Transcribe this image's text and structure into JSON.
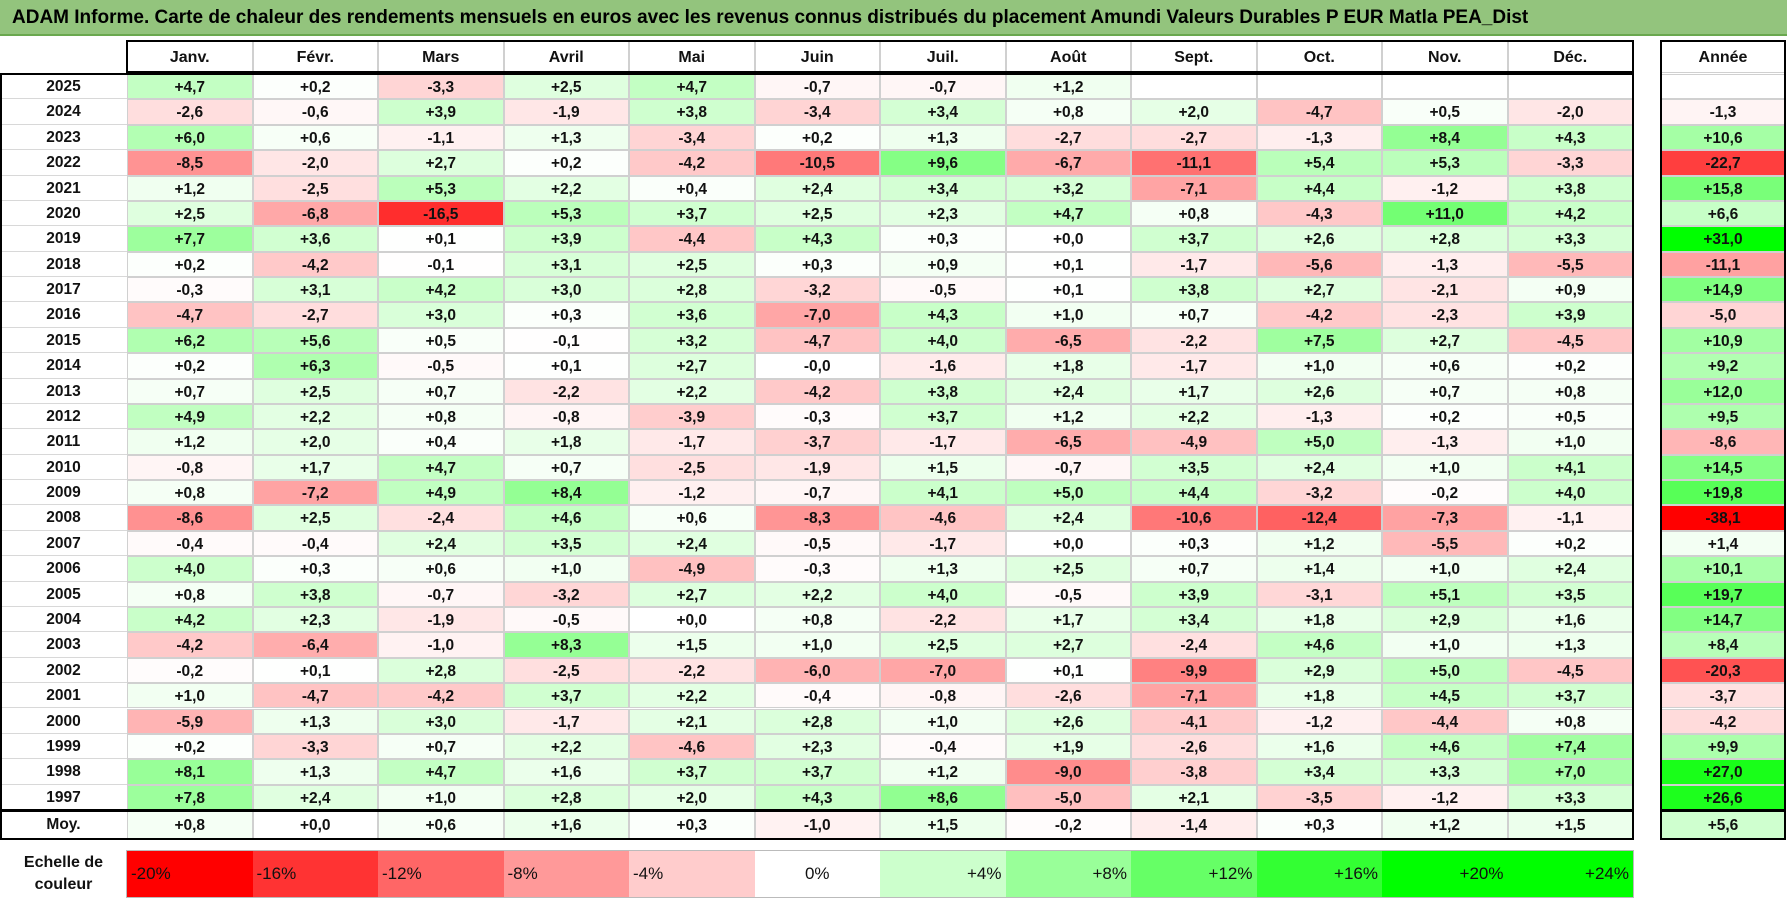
{
  "title": "ADAM Informe. Carte de chaleur des rendements mensuels en euros avec les revenus connus distribués du placement Amundi Valeurs Durables P EUR Matla PEA_Dist",
  "chart_data": {
    "type": "heatmap",
    "columns": [
      "Janv.",
      "Févr.",
      "Mars",
      "Avril",
      "Mai",
      "Juin",
      "Juil.",
      "Août",
      "Sept.",
      "Oct.",
      "Nov.",
      "Déc."
    ],
    "annual_header": "Année",
    "rows": [
      {
        "year": "2025",
        "values": [
          "+4,7",
          "+0,2",
          "-3,3",
          "+2,5",
          "+4,7",
          "-0,7",
          "-0,7",
          "+1,2",
          "",
          "",
          "",
          ""
        ],
        "annual": ""
      },
      {
        "year": "2024",
        "values": [
          "-2,6",
          "-0,6",
          "+3,9",
          "-1,9",
          "+3,8",
          "-3,4",
          "+3,4",
          "+0,8",
          "+2,0",
          "-4,7",
          "+0,5",
          "-2,0"
        ],
        "annual": "-1,3"
      },
      {
        "year": "2023",
        "values": [
          "+6,0",
          "+0,6",
          "-1,1",
          "+1,3",
          "-3,4",
          "+0,2",
          "+1,3",
          "-2,7",
          "-2,7",
          "-1,3",
          "+8,4",
          "+4,3"
        ],
        "annual": "+10,6"
      },
      {
        "year": "2022",
        "values": [
          "-8,5",
          "-2,0",
          "+2,7",
          "+0,2",
          "-4,2",
          "-10,5",
          "+9,6",
          "-6,7",
          "-11,1",
          "+5,4",
          "+5,3",
          "-3,3"
        ],
        "annual": "-22,7"
      },
      {
        "year": "2021",
        "values": [
          "+1,2",
          "-2,5",
          "+5,3",
          "+2,2",
          "+0,4",
          "+2,4",
          "+3,4",
          "+3,2",
          "-7,1",
          "+4,4",
          "-1,2",
          "+3,8"
        ],
        "annual": "+15,8"
      },
      {
        "year": "2020",
        "values": [
          "+2,5",
          "-6,8",
          "-16,5",
          "+5,3",
          "+3,7",
          "+2,5",
          "+2,3",
          "+4,7",
          "+0,8",
          "-4,3",
          "+11,0",
          "+4,2"
        ],
        "annual": "+6,6"
      },
      {
        "year": "2019",
        "values": [
          "+7,7",
          "+3,6",
          "+0,1",
          "+3,9",
          "-4,4",
          "+4,3",
          "+0,3",
          "+0,0",
          "+3,7",
          "+2,6",
          "+2,8",
          "+3,3"
        ],
        "annual": "+31,0"
      },
      {
        "year": "2018",
        "values": [
          "+0,2",
          "-4,2",
          "-0,1",
          "+3,1",
          "+2,5",
          "+0,3",
          "+0,9",
          "+0,1",
          "-1,7",
          "-5,6",
          "-1,3",
          "-5,5"
        ],
        "annual": "-11,1"
      },
      {
        "year": "2017",
        "values": [
          "-0,3",
          "+3,1",
          "+4,2",
          "+3,0",
          "+2,8",
          "-3,2",
          "-0,5",
          "+0,1",
          "+3,8",
          "+2,7",
          "-2,1",
          "+0,9"
        ],
        "annual": "+14,9"
      },
      {
        "year": "2016",
        "values": [
          "-4,7",
          "-2,7",
          "+3,0",
          "+0,3",
          "+3,6",
          "-7,0",
          "+4,3",
          "+1,0",
          "+0,7",
          "-4,2",
          "-2,3",
          "+3,9"
        ],
        "annual": "-5,0"
      },
      {
        "year": "2015",
        "values": [
          "+6,2",
          "+5,6",
          "+0,5",
          "-0,1",
          "+3,2",
          "-4,7",
          "+4,0",
          "-6,5",
          "-2,2",
          "+7,5",
          "+2,7",
          "-4,5"
        ],
        "annual": "+10,9"
      },
      {
        "year": "2014",
        "values": [
          "+0,2",
          "+6,3",
          "-0,5",
          "+0,1",
          "+2,7",
          "-0,0",
          "-1,6",
          "+1,8",
          "-1,7",
          "+1,0",
          "+0,6",
          "+0,2"
        ],
        "annual": "+9,2"
      },
      {
        "year": "2013",
        "values": [
          "+0,7",
          "+2,5",
          "+0,7",
          "-2,2",
          "+2,2",
          "-4,2",
          "+3,8",
          "+2,4",
          "+1,7",
          "+2,6",
          "+0,7",
          "+0,8"
        ],
        "annual": "+12,0"
      },
      {
        "year": "2012",
        "values": [
          "+4,9",
          "+2,2",
          "+0,8",
          "-0,8",
          "-3,9",
          "-0,3",
          "+3,7",
          "+1,2",
          "+2,2",
          "-1,3",
          "+0,2",
          "+0,5"
        ],
        "annual": "+9,5"
      },
      {
        "year": "2011",
        "values": [
          "+1,2",
          "+2,0",
          "+0,4",
          "+1,8",
          "-1,7",
          "-3,7",
          "-1,7",
          "-6,5",
          "-4,9",
          "+5,0",
          "-1,3",
          "+1,0"
        ],
        "annual": "-8,6"
      },
      {
        "year": "2010",
        "values": [
          "-0,8",
          "+1,7",
          "+4,7",
          "+0,7",
          "-2,5",
          "-1,9",
          "+1,5",
          "-0,7",
          "+3,5",
          "+2,4",
          "+1,0",
          "+4,1"
        ],
        "annual": "+14,5"
      },
      {
        "year": "2009",
        "values": [
          "+0,8",
          "-7,2",
          "+4,9",
          "+8,4",
          "-1,2",
          "-0,7",
          "+4,1",
          "+5,0",
          "+4,4",
          "-3,2",
          "-0,2",
          "+4,0"
        ],
        "annual": "+19,8"
      },
      {
        "year": "2008",
        "values": [
          "-8,6",
          "+2,5",
          "-2,4",
          "+4,6",
          "+0,6",
          "-8,3",
          "-4,6",
          "+2,4",
          "-10,6",
          "-12,4",
          "-7,3",
          "-1,1"
        ],
        "annual": "-38,1"
      },
      {
        "year": "2007",
        "values": [
          "-0,4",
          "-0,4",
          "+2,4",
          "+3,5",
          "+2,4",
          "-0,5",
          "-1,7",
          "+0,0",
          "+0,3",
          "+1,2",
          "-5,5",
          "+0,2"
        ],
        "annual": "+1,4"
      },
      {
        "year": "2006",
        "values": [
          "+4,0",
          "+0,3",
          "+0,6",
          "+1,0",
          "-4,9",
          "-0,3",
          "+1,3",
          "+2,5",
          "+0,7",
          "+1,4",
          "+1,0",
          "+2,4"
        ],
        "annual": "+10,1"
      },
      {
        "year": "2005",
        "values": [
          "+0,8",
          "+3,8",
          "-0,7",
          "-3,2",
          "+2,7",
          "+2,2",
          "+4,0",
          "-0,5",
          "+3,9",
          "-3,1",
          "+5,1",
          "+3,5"
        ],
        "annual": "+19,7"
      },
      {
        "year": "2004",
        "values": [
          "+4,2",
          "+2,3",
          "-1,9",
          "-0,5",
          "+0,0",
          "+0,8",
          "-2,2",
          "+1,7",
          "+3,4",
          "+1,8",
          "+2,9",
          "+1,6"
        ],
        "annual": "+14,7"
      },
      {
        "year": "2003",
        "values": [
          "-4,2",
          "-6,4",
          "-1,0",
          "+8,3",
          "+1,5",
          "+1,0",
          "+2,5",
          "+2,7",
          "-2,4",
          "+4,6",
          "+1,0",
          "+1,3"
        ],
        "annual": "+8,4"
      },
      {
        "year": "2002",
        "values": [
          "-0,2",
          "+0,1",
          "+2,8",
          "-2,5",
          "-2,2",
          "-6,0",
          "-7,0",
          "+0,1",
          "-9,9",
          "+2,9",
          "+5,0",
          "-4,5"
        ],
        "annual": "-20,3"
      },
      {
        "year": "2001",
        "values": [
          "+1,0",
          "-4,7",
          "-4,2",
          "+3,7",
          "+2,2",
          "-0,4",
          "-0,8",
          "-2,6",
          "-7,1",
          "+1,8",
          "+4,5",
          "+3,7"
        ],
        "annual": "-3,7"
      },
      {
        "year": "2000",
        "values": [
          "-5,9",
          "+1,3",
          "+3,0",
          "-1,7",
          "+2,1",
          "+2,8",
          "+1,0",
          "+2,6",
          "-4,1",
          "-1,2",
          "-4,4",
          "+0,8"
        ],
        "annual": "-4,2"
      },
      {
        "year": "1999",
        "values": [
          "+0,2",
          "-3,3",
          "+0,7",
          "+2,2",
          "-4,6",
          "+2,3",
          "-0,4",
          "+1,9",
          "-2,6",
          "+1,6",
          "+4,6",
          "+7,4"
        ],
        "annual": "+9,9"
      },
      {
        "year": "1998",
        "values": [
          "+8,1",
          "+1,3",
          "+4,7",
          "+1,6",
          "+3,7",
          "+3,7",
          "+1,2",
          "-9,0",
          "-3,8",
          "+3,4",
          "+3,3",
          "+7,0"
        ],
        "annual": "+27,0"
      },
      {
        "year": "1997",
        "values": [
          "+7,8",
          "+2,4",
          "+1,0",
          "+2,8",
          "+2,0",
          "+4,3",
          "+8,6",
          "-5,0",
          "+2,1",
          "-3,5",
          "-1,2",
          "+3,3"
        ],
        "annual": "+26,6"
      }
    ],
    "average": {
      "label": "Moy.",
      "values": [
        "+0,8",
        "+0,0",
        "+0,6",
        "+1,6",
        "+0,3",
        "-1,0",
        "+1,5",
        "-0,2",
        "-1,4",
        "+0,3",
        "+1,2",
        "+1,5"
      ],
      "annual": "+5,6"
    },
    "legend": {
      "title": "Echelle de couleur",
      "labels": [
        "-20%",
        "-16%",
        "-12%",
        "-8%",
        "-4%",
        "0%",
        "+4%",
        "+8%",
        "+12%",
        "+16%",
        "+20%",
        "+24%"
      ],
      "values": [
        -20,
        -16,
        -12,
        -8,
        -4,
        0,
        4,
        8,
        12,
        16,
        20,
        24
      ]
    },
    "colors": {
      "negative_max": "#ff0000",
      "neutral": "#ffffff",
      "positive_max": "#00ff00",
      "title_bg": "#93c47d"
    }
  }
}
